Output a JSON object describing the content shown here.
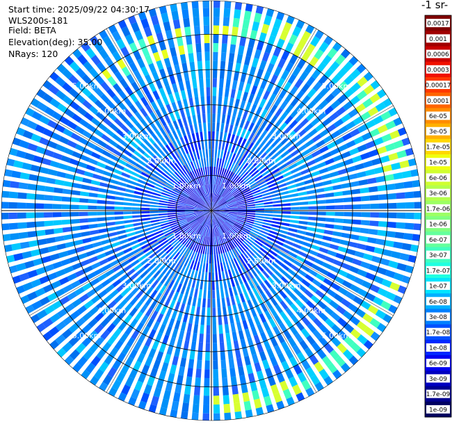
{
  "header": {
    "start_time": "Start time: 2025/09/22 04:30:17",
    "instrument": "WLS200s-181",
    "field": "Field: BETA",
    "elevation": "Elevation(deg): 35.00",
    "nrays": "NRays: 120"
  },
  "colorbar": {
    "title": "-1 sr-",
    "labels": [
      "0.0017",
      "0.001",
      "0.0006",
      "0.0003",
      "0.00017",
      "0.0001",
      "6e-05",
      "3e-05",
      "1.7e-05",
      "1e-05",
      "6e-06",
      "3e-06",
      "1.7e-06",
      "1e-06",
      "6e-07",
      "3e-07",
      "1.7e-07",
      "1e-07",
      "6e-08",
      "3e-08",
      "1.7e-08",
      "1e-08",
      "6e-09",
      "3e-09",
      "1.7e-09",
      "1e-09"
    ],
    "colors": [
      "#7f0000",
      "#a00000",
      "#c80000",
      "#f01000",
      "#ff3800",
      "#ff6400",
      "#ff8c00",
      "#ffb000",
      "#ffd800",
      "#f0ff10",
      "#d0ff30",
      "#b4ff4c",
      "#9cff64",
      "#80ff80",
      "#64ff9c",
      "#40ffc0",
      "#20ffe0",
      "#00e4ff",
      "#00b0ff",
      "#0080ff",
      "#0050ff",
      "#0028ff",
      "#0000f0",
      "#0000c0",
      "#000090",
      "#000060"
    ]
  },
  "chart_data": {
    "type": "heatmap",
    "projection": "polar (PPI scan)",
    "field": "BETA",
    "elevation_deg": 35.0,
    "n_rays": 120,
    "range_rings_km": [
      1.0,
      2.0,
      3.0,
      4.0,
      5.0
    ],
    "ring_labels": [
      "1.00km",
      "2.00km",
      "3.00km",
      "4.00km",
      "5.00km"
    ],
    "max_range_km": 5.95,
    "description_values": {
      "background_beta": "3e-08 to 1e-07",
      "near_range_beta": "1e-09 to 1e-08",
      "aerosol_arc_beta": "1e-07 to 3e-05",
      "aerosol_arc_range_km": [
        5.2,
        5.8
      ]
    },
    "colorbar_scale": "log"
  }
}
